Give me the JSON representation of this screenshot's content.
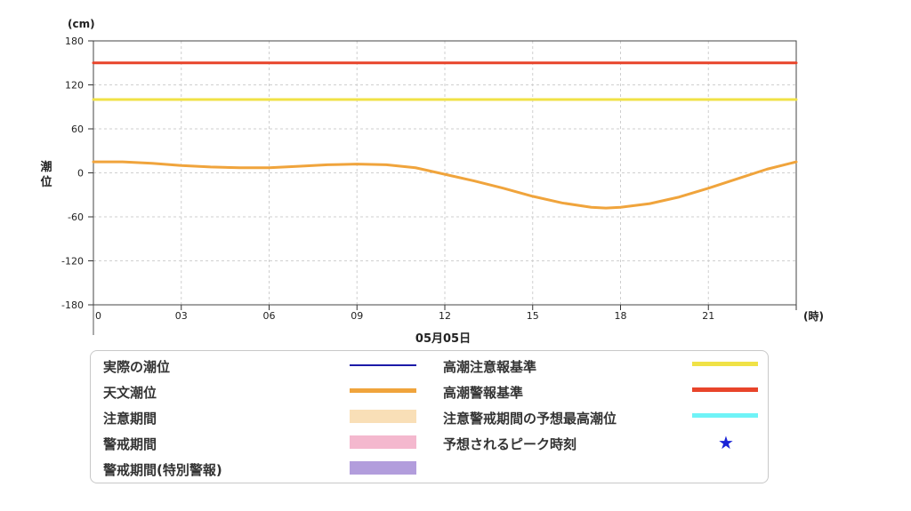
{
  "chart_data": {
    "type": "line",
    "unit_label": "(cm)",
    "ylabel": "潮位",
    "xunit_label": "(時)",
    "date_label": "05月05日",
    "ylim": [
      -180,
      180
    ],
    "yticks": [
      "180",
      "120",
      "60",
      "0",
      "-60",
      "-120",
      "-180"
    ],
    "xlim": [
      0,
      24
    ],
    "xticks": [
      "0",
      "03",
      "06",
      "09",
      "12",
      "15",
      "18",
      "21"
    ],
    "grid": true,
    "series": [
      {
        "name": "高潮警報基準",
        "color": "#e8442a",
        "x": [
          0,
          24
        ],
        "y": [
          150,
          150
        ]
      },
      {
        "name": "高潮注意報基準",
        "color": "#f0e246",
        "x": [
          0,
          24
        ],
        "y": [
          100,
          100
        ]
      },
      {
        "name": "天文潮位",
        "color": "#f0a43c",
        "x": [
          0,
          1,
          2,
          3,
          4,
          5,
          6,
          7,
          8,
          9,
          10,
          11,
          12,
          13,
          14,
          15,
          16,
          17,
          17.5,
          18,
          19,
          20,
          21,
          22,
          23,
          24
        ],
        "y": [
          15,
          15,
          13,
          10,
          8,
          7,
          7,
          9,
          11,
          12,
          11,
          7,
          -2,
          -11,
          -21,
          -32,
          -41,
          -47,
          -48,
          -47,
          -42,
          -33,
          -21,
          -8,
          5,
          15
        ]
      }
    ]
  },
  "legend": {
    "items": [
      {
        "label": "実際の潮位",
        "color": "#1c1aa8",
        "kind": "line"
      },
      {
        "label": "天文潮位",
        "color": "#f0a43c",
        "kind": "line"
      },
      {
        "label": "注意期間",
        "color": "#f9dfb7",
        "kind": "band"
      },
      {
        "label": "警戒期間",
        "color": "#f4b8ce",
        "kind": "band"
      },
      {
        "label": "警戒期間(特別警報)",
        "color": "#b29ddc",
        "kind": "band"
      },
      {
        "label": "高潮注意報基準",
        "color": "#f0e246",
        "kind": "line"
      },
      {
        "label": "高潮警報基準",
        "color": "#e8442a",
        "kind": "line"
      },
      {
        "label": "注意警戒期間の予想最高潮位",
        "color": "#6ff3f7",
        "kind": "line"
      },
      {
        "label": "予想されるピーク時刻",
        "color": "#1a23d6",
        "kind": "star",
        "glyph": "★"
      }
    ]
  }
}
